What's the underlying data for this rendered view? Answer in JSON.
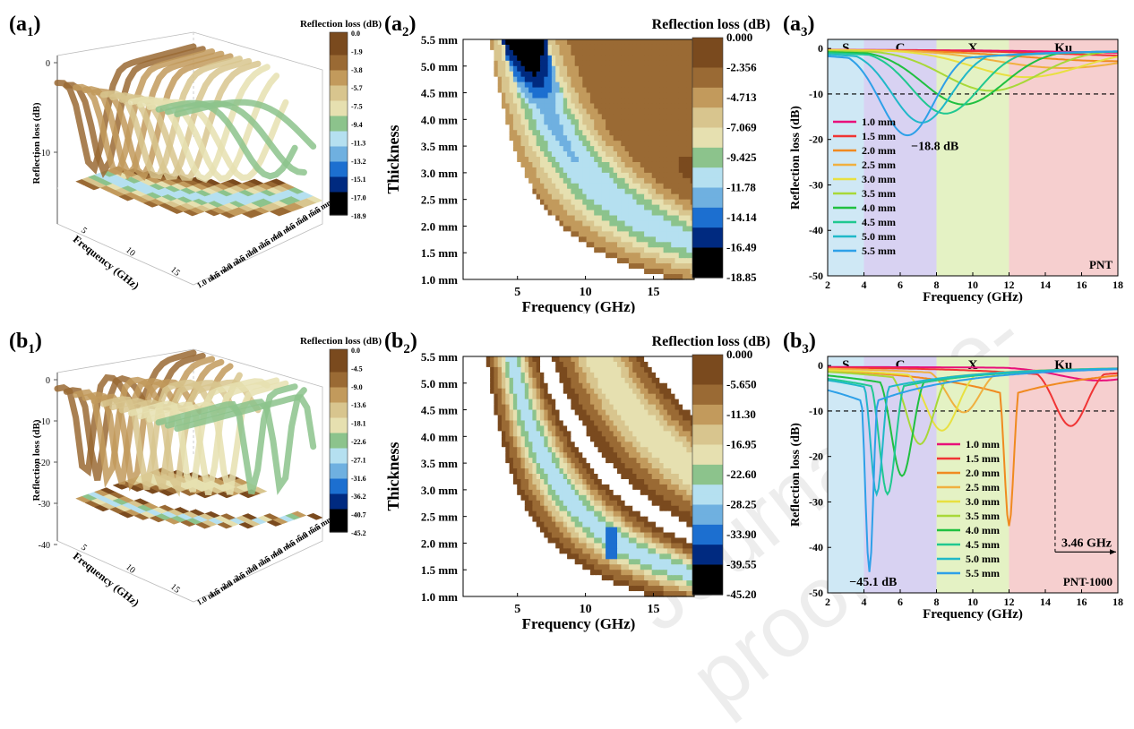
{
  "watermark": "Journal Pre-proof",
  "panels": {
    "a1": {
      "label_main": "(a",
      "label_sub": "1",
      "label_close": ")"
    },
    "a2": {
      "label_main": "(a",
      "label_sub": "2",
      "label_close": ")"
    },
    "a3": {
      "label_main": "(a",
      "label_sub": "3",
      "label_close": ")"
    },
    "b1": {
      "label_main": "(b",
      "label_sub": "1",
      "label_close": ")"
    },
    "b2": {
      "label_main": "(b",
      "label_sub": "2",
      "label_close": ")"
    },
    "b3": {
      "label_main": "(b",
      "label_sub": "3",
      "label_close": ")"
    }
  },
  "colors": {
    "ramp": [
      "#ffffff",
      "#7a4a1e",
      "#9a6a34",
      "#c29a5c",
      "#d8c58e",
      "#e6e0b0",
      "#8cc38c",
      "#b5e0f0",
      "#6fb0e0",
      "#1c6fd0",
      "#002a80",
      "#000000"
    ],
    "band_S": "#cfe8f5",
    "band_C": "#d8d2f2",
    "band_X": "#e4f2c4",
    "band_Ku": "#f6cfcf",
    "series": [
      "#e8107a",
      "#f03434",
      "#f08a20",
      "#f0b040",
      "#e8e040",
      "#a8d838",
      "#20c040",
      "#20c890",
      "#20b8c8",
      "#2ea0e8"
    ]
  },
  "chart_data": [
    {
      "id": "a1",
      "type": "heatmap",
      "subtype": "3d-surface",
      "title": "",
      "zlabel": "Reflection loss (dB)",
      "xlabel": "Frequency (GHz)",
      "ylabel": "",
      "z_ticks": [
        "0",
        "-10"
      ],
      "x_ticks": [
        "5",
        "10",
        "15"
      ],
      "y_ticks": [
        "1.0 mm",
        "1.5 mm",
        "2.0 mm",
        "2.5 mm",
        "3.0 mm",
        "3.5 mm",
        "4.0 mm",
        "4.5 mm",
        "5.0 mm",
        "5.5 mm"
      ],
      "colorbar_title": "Reflection loss (dB)",
      "colorbar_ticks": [
        "0.0",
        "-1.9",
        "-3.8",
        "-5.7",
        "-7.5",
        "-9.4",
        "-11.3",
        "-13.2",
        "-15.1",
        "-17.0",
        "-18.9"
      ]
    },
    {
      "id": "a2",
      "type": "heatmap",
      "title": "",
      "xlabel": "Frequency (GHz)",
      "ylabel": "Thickness",
      "x_ticks": [
        "5",
        "10",
        "15"
      ],
      "y_ticks": [
        "1.0 mm",
        "1.5 mm",
        "2.0 mm",
        "2.5 mm",
        "3.0 mm",
        "3.5 mm",
        "4.0 mm",
        "4.5 mm",
        "5.0 mm",
        "5.5 mm"
      ],
      "xlim": [
        1,
        18
      ],
      "ylim": [
        1.0,
        5.5
      ],
      "colorbar_title": "Reflection loss (dB)",
      "colorbar_ticks": [
        "0.000",
        "-2.356",
        "-4.713",
        "-7.069",
        "-9.425",
        "-11.78",
        "-14.14",
        "-16.49",
        "-18.85"
      ],
      "min_rl": -18.85
    },
    {
      "id": "a3",
      "type": "line",
      "title": "",
      "xlabel": "Frequency (GHz)",
      "ylabel": "Reflection loss (dB)",
      "xlim": [
        2,
        18
      ],
      "ylim": [
        -50,
        2
      ],
      "x_ticks": [
        "2",
        "4",
        "6",
        "8",
        "10",
        "12",
        "14",
        "16",
        "18"
      ],
      "y_ticks": [
        "0",
        "-10",
        "-20",
        "-30",
        "-40",
        "-50"
      ],
      "bands": [
        {
          "name": "S",
          "from": 2,
          "to": 4
        },
        {
          "name": "C",
          "from": 4,
          "to": 8
        },
        {
          "name": "X",
          "from": 8,
          "to": 12
        },
        {
          "name": "Ku",
          "from": 12,
          "to": 18
        }
      ],
      "threshold": -10,
      "sample_label": "PNT",
      "annotation": "−18.8 dB",
      "series": [
        {
          "name": "1.0 mm",
          "min_f": 25,
          "min_rl": -1,
          "width": 10
        },
        {
          "name": "1.5 mm",
          "min_f": 22,
          "min_rl": -1.5,
          "width": 9
        },
        {
          "name": "2.0 mm",
          "min_f": 18,
          "min_rl": -2.5,
          "width": 7
        },
        {
          "name": "2.5 mm",
          "min_f": 15,
          "min_rl": -4,
          "width": 5
        },
        {
          "name": "3.0 mm",
          "min_f": 13,
          "min_rl": -6,
          "width": 4
        },
        {
          "name": "3.5 mm",
          "min_f": 11,
          "min_rl": -9,
          "width": 3.5
        },
        {
          "name": "4.0 mm",
          "min_f": 9.5,
          "min_rl": -12,
          "width": 3
        },
        {
          "name": "4.5 mm",
          "min_f": 8.5,
          "min_rl": -14,
          "width": 2.5
        },
        {
          "name": "5.0 mm",
          "min_f": 7.2,
          "min_rl": -16,
          "width": 2.2
        },
        {
          "name": "5.5 mm",
          "min_f": 6.4,
          "min_rl": -18.8,
          "width": 2
        }
      ]
    },
    {
      "id": "b1",
      "type": "heatmap",
      "subtype": "3d-surface",
      "title": "",
      "zlabel": "Reflection loss (dB)",
      "xlabel": "Frequency (GHz)",
      "ylabel": "",
      "z_ticks": [
        "0",
        "-10",
        "-20",
        "-30",
        "-40"
      ],
      "x_ticks": [
        "5",
        "10",
        "15"
      ],
      "y_ticks": [
        "1.0 mm",
        "1.5 mm",
        "2.0 mm",
        "2.5 mm",
        "3.0 mm",
        "3.5 mm",
        "4.0 mm",
        "4.5 mm",
        "5.0 mm",
        "5.5 mm"
      ],
      "colorbar_title": "Reflection loss (dB)",
      "colorbar_ticks": [
        "0.0",
        "-4.5",
        "-9.0",
        "-13.6",
        "-18.1",
        "-22.6",
        "-27.1",
        "-31.6",
        "-36.2",
        "-40.7",
        "-45.2"
      ]
    },
    {
      "id": "b2",
      "type": "heatmap",
      "title": "",
      "xlabel": "Frequency (GHz)",
      "ylabel": "Thickness",
      "x_ticks": [
        "5",
        "10",
        "15"
      ],
      "y_ticks": [
        "1.0 mm",
        "1.5 mm",
        "2.0 mm",
        "2.5 mm",
        "3.0 mm",
        "3.5 mm",
        "4.0 mm",
        "4.5 mm",
        "5.0 mm",
        "5.5 mm"
      ],
      "xlim": [
        1,
        18
      ],
      "ylim": [
        1.0,
        5.5
      ],
      "colorbar_title": "Reflection loss (dB)",
      "colorbar_ticks": [
        "0.000",
        "-5.650",
        "-11.30",
        "-16.95",
        "-22.60",
        "-28.25",
        "-33.90",
        "-39.55",
        "-45.20"
      ],
      "min_rl": -45.2
    },
    {
      "id": "b3",
      "type": "line",
      "title": "",
      "xlabel": "Frequency (GHz)",
      "ylabel": "Reflection loss (dB)",
      "xlim": [
        2,
        18
      ],
      "ylim": [
        -50,
        2
      ],
      "x_ticks": [
        "2",
        "4",
        "6",
        "8",
        "10",
        "12",
        "14",
        "16",
        "18"
      ],
      "y_ticks": [
        "0",
        "-10",
        "-20",
        "-30",
        "-40",
        "-50"
      ],
      "bands": [
        {
          "name": "S",
          "from": 2,
          "to": 4
        },
        {
          "name": "C",
          "from": 4,
          "to": 8
        },
        {
          "name": "X",
          "from": 8,
          "to": 12
        },
        {
          "name": "Ku",
          "from": 12,
          "to": 18
        }
      ],
      "threshold": -10,
      "sample_label": "PNT-1000",
      "annotation": "−45.1 dB",
      "bandwidth_label": "3.46 GHz",
      "bandwidth": [
        14.54,
        18
      ],
      "series": [
        {
          "name": "1.0 mm",
          "min_f": 17,
          "min_rl": -3,
          "width": 3
        },
        {
          "name": "1.5 mm",
          "min_f": 15.4,
          "min_rl": -13,
          "width": 1.2
        },
        {
          "name": "2.0 mm",
          "min_f": 12.0,
          "min_rl": -35,
          "width": 0.35
        },
        {
          "name": "2.5 mm",
          "min_f": 9.5,
          "min_rl": -10,
          "width": 1.2
        },
        {
          "name": "3.0 mm",
          "min_f": 8.3,
          "min_rl": -14,
          "width": 1.2
        },
        {
          "name": "3.5 mm",
          "min_f": 7.1,
          "min_rl": -17,
          "width": 1.0
        },
        {
          "name": "4.0 mm",
          "min_f": 6.1,
          "min_rl": -24,
          "width": 0.8
        },
        {
          "name": "4.5 mm",
          "min_f": 5.3,
          "min_rl": -28,
          "width": 0.6
        },
        {
          "name": "5.0 mm",
          "min_f": 4.7,
          "min_rl": -28,
          "width": 0.45
        },
        {
          "name": "5.5 mm",
          "min_f": 4.3,
          "min_rl": -45.1,
          "width": 0.3
        }
      ]
    }
  ]
}
